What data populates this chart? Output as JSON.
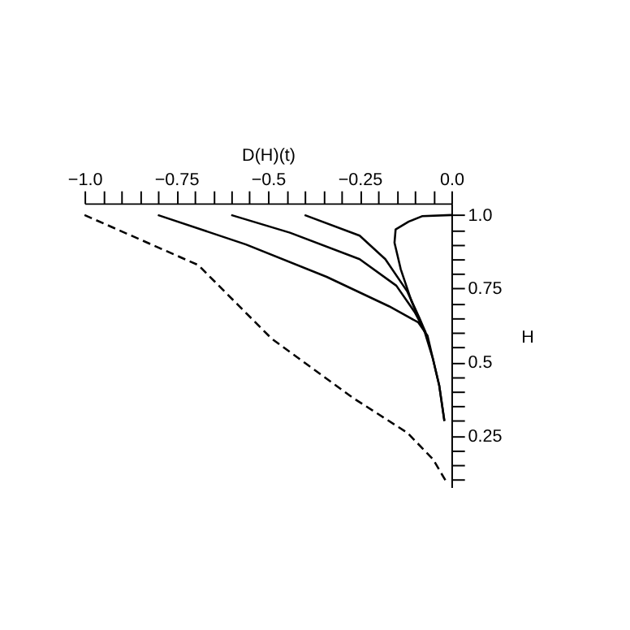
{
  "chart_data": {
    "type": "line",
    "xlabel": "D(H)(t)",
    "ylabel": "H",
    "xlim": [
      -1.0,
      0.0
    ],
    "ylim": [
      0.075,
      1.04
    ],
    "xticks": [
      {
        "value": -1.0,
        "label": "−1.0"
      },
      {
        "value": -0.95,
        "label": null
      },
      {
        "value": -0.9,
        "label": null
      },
      {
        "value": -0.85,
        "label": null
      },
      {
        "value": -0.8,
        "label": null
      },
      {
        "value": -0.75,
        "label": "−0.75"
      },
      {
        "value": -0.7,
        "label": null
      },
      {
        "value": -0.65,
        "label": null
      },
      {
        "value": -0.6,
        "label": null
      },
      {
        "value": -0.55,
        "label": null
      },
      {
        "value": -0.5,
        "label": "−0.5"
      },
      {
        "value": -0.45,
        "label": null
      },
      {
        "value": -0.4,
        "label": null
      },
      {
        "value": -0.35,
        "label": null
      },
      {
        "value": -0.3,
        "label": null
      },
      {
        "value": -0.25,
        "label": "−0.25"
      },
      {
        "value": -0.2,
        "label": null
      },
      {
        "value": -0.15,
        "label": null
      },
      {
        "value": -0.1,
        "label": null
      },
      {
        "value": -0.05,
        "label": null
      },
      {
        "value": 0.0,
        "label": "0.0"
      }
    ],
    "yticks": [
      {
        "value": 0.1,
        "label": null
      },
      {
        "value": 0.15,
        "label": null
      },
      {
        "value": 0.2,
        "label": null
      },
      {
        "value": 0.25,
        "label": "0.25"
      },
      {
        "value": 0.3,
        "label": null
      },
      {
        "value": 0.35,
        "label": null
      },
      {
        "value": 0.4,
        "label": null
      },
      {
        "value": 0.45,
        "label": null
      },
      {
        "value": 0.5,
        "label": "0.5"
      },
      {
        "value": 0.55,
        "label": null
      },
      {
        "value": 0.6,
        "label": null
      },
      {
        "value": 0.65,
        "label": null
      },
      {
        "value": 0.7,
        "label": null
      },
      {
        "value": 0.75,
        "label": "0.75"
      },
      {
        "value": 0.8,
        "label": null
      },
      {
        "value": 0.85,
        "label": null
      },
      {
        "value": 0.9,
        "label": null
      },
      {
        "value": 0.95,
        "label": null
      },
      {
        "value": 1.0,
        "label": "1.0"
      }
    ],
    "grid": false,
    "marker": "none",
    "series": [
      {
        "color": "#000000",
        "line_style": "dashed",
        "x": [
          -1.0,
          -0.69,
          -0.49,
          -0.27,
          -0.12,
          -0.05,
          -0.01
        ],
        "values": [
          1.0,
          0.83,
          0.58,
          0.38,
          0.26,
          0.17,
          0.085
        ]
      },
      {
        "color": "#000000",
        "line_style": "solid",
        "x": [
          -0.8,
          -0.56,
          -0.34,
          -0.17,
          -0.09,
          -0.065,
          -0.05,
          -0.033,
          -0.019
        ],
        "values": [
          1.0,
          0.9,
          0.79,
          0.69,
          0.635,
          0.59,
          0.51,
          0.42,
          0.3
        ]
      },
      {
        "color": "#000000",
        "line_style": "solid",
        "x": [
          -0.6,
          -0.44,
          -0.25,
          -0.15,
          -0.1,
          -0.07
        ],
        "values": [
          1.0,
          0.94,
          0.85,
          0.76,
          0.67,
          0.6
        ]
      },
      {
        "color": "#000000",
        "line_style": "solid",
        "x": [
          -0.4,
          -0.25,
          -0.18,
          -0.12,
          -0.087,
          -0.07
        ],
        "values": [
          1.0,
          0.93,
          0.85,
          0.74,
          0.65,
          0.6
        ]
      },
      {
        "color": "#000000",
        "line_style": "solid",
        "x": [
          0.0,
          -0.08,
          -0.116,
          -0.152,
          -0.155,
          -0.138,
          -0.109,
          -0.072,
          -0.05,
          -0.033,
          -0.019
        ],
        "values": [
          1.0,
          0.996,
          0.978,
          0.951,
          0.906,
          0.816,
          0.708,
          0.6,
          0.51,
          0.42,
          0.3
        ]
      }
    ]
  }
}
